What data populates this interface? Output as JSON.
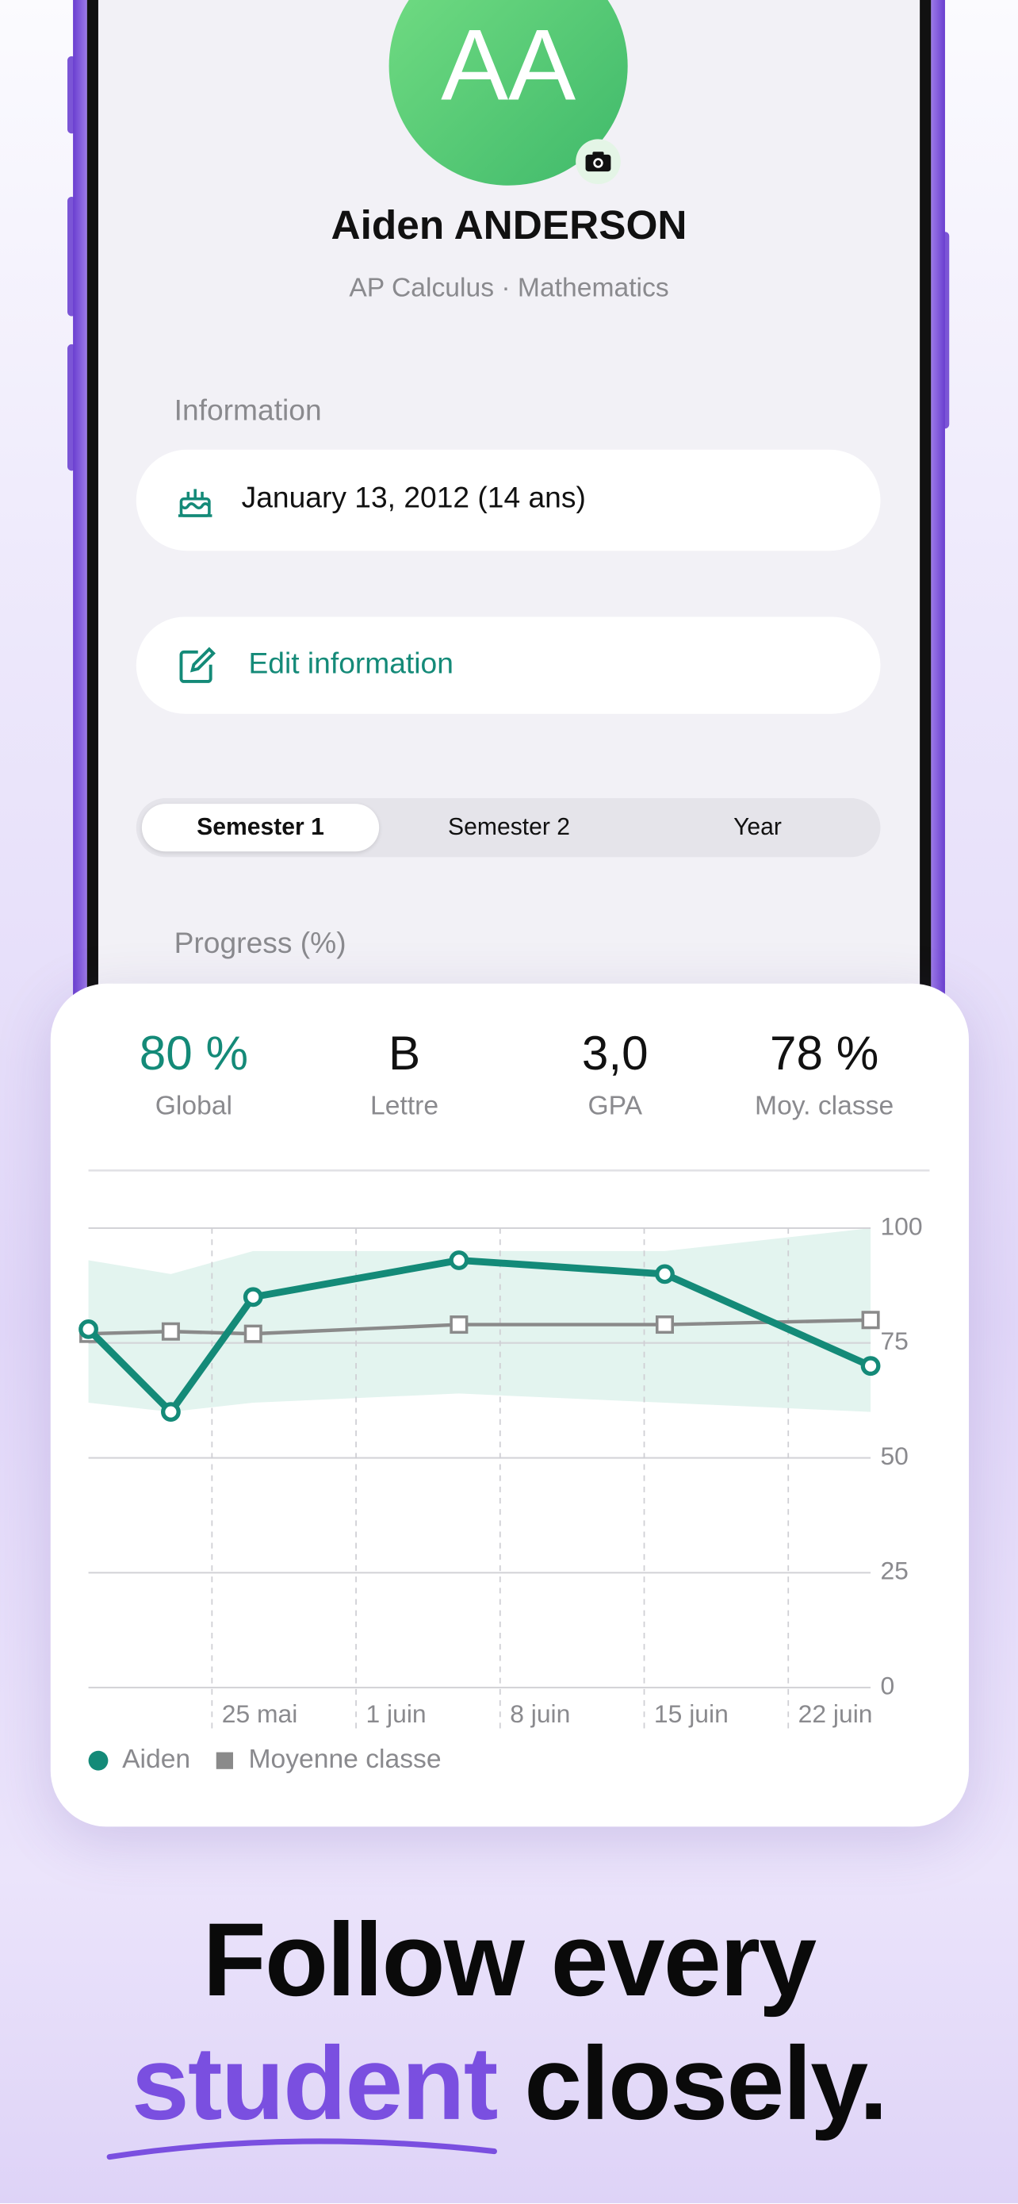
{
  "profile": {
    "initials": "AA",
    "name": "Aiden ANDERSON",
    "subtitle": "AP Calculus · Mathematics"
  },
  "information": {
    "title": "Information",
    "birthday": "January 13, 2012 (14 ans)",
    "edit": "Edit information"
  },
  "tabs": [
    "Semester 1",
    "Semester 2",
    "Year"
  ],
  "progress_title": "Progress (%)",
  "stats": [
    {
      "value": "80 %",
      "label": "Global"
    },
    {
      "value": "B",
      "label": "Lettre"
    },
    {
      "value": "3,0",
      "label": "GPA"
    },
    {
      "value": "78 %",
      "label": "Moy. classe"
    }
  ],
  "chart": {
    "type": "line",
    "x": [
      19,
      23,
      27,
      37,
      47,
      57
    ],
    "xlim": [
      19,
      57
    ],
    "xticks": [
      {
        "value": 25,
        "label": "25 mai"
      },
      {
        "value": 32,
        "label": "1 juin"
      },
      {
        "value": 39,
        "label": "8 juin"
      },
      {
        "value": 46,
        "label": "15 juin"
      },
      {
        "value": 53,
        "label": "22 juin"
      }
    ],
    "ylim": [
      0,
      100
    ],
    "yticks": [
      0,
      25,
      50,
      75,
      100
    ],
    "grid": true,
    "series": [
      {
        "name": "Aiden",
        "color": "#148a78",
        "values": [
          78,
          60,
          85,
          93,
          90,
          70
        ]
      },
      {
        "name": "Moyenne classe",
        "color": "#8a8a8a",
        "values": [
          77,
          77.5,
          77,
          79,
          79,
          80
        ]
      }
    ],
    "range": {
      "color": "#e3f4ef",
      "upper": [
        93,
        90,
        95,
        95,
        95,
        100
      ],
      "lower": [
        62,
        60,
        62,
        64,
        62,
        60
      ]
    }
  },
  "headline": {
    "line1": "Follow every",
    "highlight": "student",
    "rest": "closely."
  }
}
